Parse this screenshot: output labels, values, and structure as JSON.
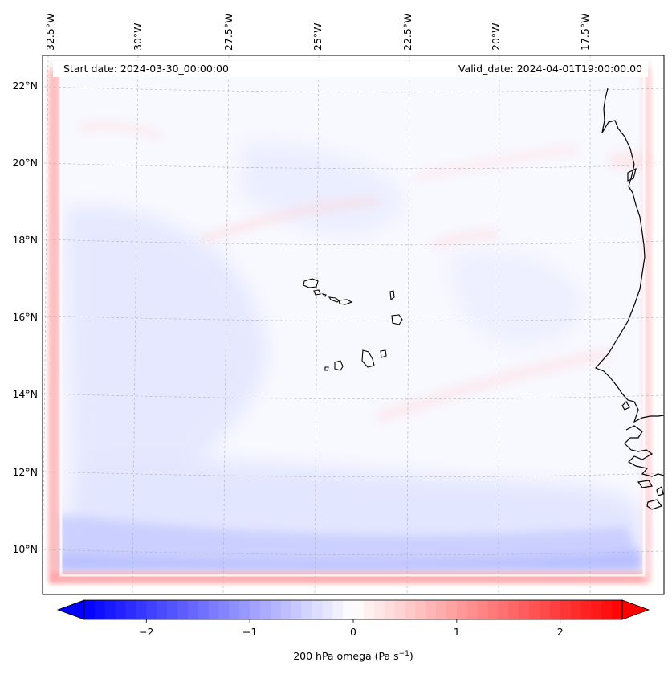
{
  "header": {
    "start_label": "Start date: 2024-03-30_00:00:00",
    "valid_label": "Valid_date: 2024-04-01T19:00:00.00"
  },
  "longitude_labels": [
    "32.5°W",
    "30°W",
    "27.5°W",
    "25°W",
    "22.5°W",
    "20°W",
    "17.5°W"
  ],
  "latitude_labels": [
    "22°N",
    "20°N",
    "18°N",
    "16°N",
    "14°N",
    "12°N",
    "10°N"
  ],
  "colorbar": {
    "ticks": [
      "−2",
      "−1",
      "0",
      "1",
      "2"
    ],
    "tick_values": [
      -2,
      -1,
      0,
      1,
      2
    ],
    "range": [
      -2.6,
      2.6
    ],
    "title": "200 hPa omega (Pa s",
    "title_exponent": "−1",
    "title_close": ")",
    "colormap": "bwr",
    "color_min": "#0000ff",
    "color_mid": "#ffffff",
    "color_max": "#ff0000"
  },
  "features": {
    "coastline_color": "#000000",
    "gridline_color": "#b0b0b0",
    "islands": "Cabo Verde",
    "coast": "West Africa"
  }
}
